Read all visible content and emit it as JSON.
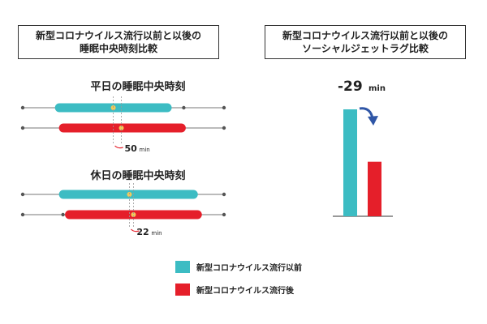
{
  "titles": {
    "left_line1": "新型コロナウイルス流行以前と以後の",
    "left_line2": "睡眠中央時刻比較",
    "right_line1": "新型コロナウイルス流行以前と以後の",
    "right_line2": "ソーシャルジェットラグ比較"
  },
  "colors": {
    "before": "#3cbcc3",
    "after": "#e51f2a",
    "axis": "#777777",
    "midpoint": "#f3c95a",
    "arrow": "#2f56a6"
  },
  "chart_data": [
    {
      "type": "range",
      "title": "平日の睡眠中央時刻",
      "series": [
        {
          "name": "新型コロナウイルス流行以前",
          "start": 0.16,
          "end": 0.74,
          "midpoint": 0.45
        },
        {
          "name": "新型コロナウイルス流行後",
          "start": 0.18,
          "end": 0.81,
          "midpoint": 0.49
        }
      ],
      "shift_label": "50",
      "shift_unit": "min"
    },
    {
      "type": "range",
      "title": "休日の睡眠中央時刻",
      "series": [
        {
          "name": "新型コロナウイルス流行以前",
          "start": 0.18,
          "end": 0.87,
          "midpoint": 0.53
        },
        {
          "name": "新型コロナウイルス流行後",
          "start": 0.21,
          "end": 0.89,
          "midpoint": 0.55
        }
      ],
      "shift_label": "22",
      "shift_unit": "min"
    },
    {
      "type": "bar",
      "title": "ソーシャルジェットラグ比較",
      "series": [
        {
          "name": "新型コロナウイルス流行以前",
          "value": 1.0
        },
        {
          "name": "新型コロナウイルス流行後",
          "value": 0.51
        }
      ],
      "difference_label": "-29",
      "difference_unit": "min"
    }
  ],
  "legend": {
    "before_label": "新型コロナウイルス流行以前",
    "after_label": "新型コロナウイルス流行後"
  }
}
